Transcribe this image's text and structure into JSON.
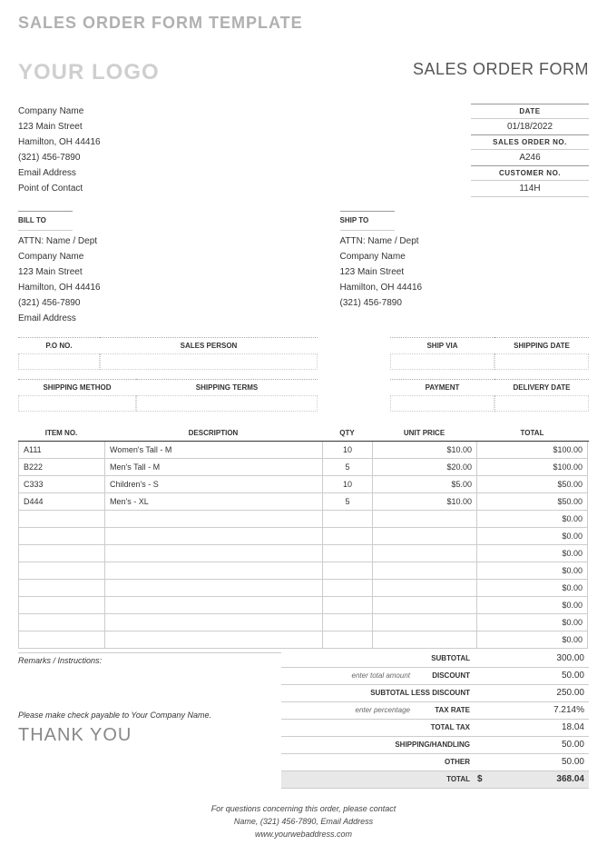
{
  "page_header": "SALES ORDER FORM TEMPLATE",
  "logo_text": "YOUR LOGO",
  "form_title": "SALES ORDER FORM",
  "company": {
    "name": "Company Name",
    "street": "123 Main Street",
    "city": "Hamilton, OH 44416",
    "phone": "(321) 456-7890",
    "email": "Email Address",
    "contact": "Point of Contact"
  },
  "meta": {
    "date_label": "DATE",
    "date_value": "01/18/2022",
    "order_label": "SALES ORDER NO.",
    "order_value": "A246",
    "customer_label": "CUSTOMER NO.",
    "customer_value": "114H"
  },
  "billto": {
    "header": "BILL TO",
    "attn": "ATTN: Name / Dept",
    "company": "Company Name",
    "street": "123 Main Street",
    "city": "Hamilton, OH 44416",
    "phone": "(321) 456-7890",
    "email": "Email Address"
  },
  "shipto": {
    "header": "SHIP TO",
    "attn": "ATTN: Name / Dept",
    "company": "Company Name",
    "street": "123 Main Street",
    "city": "Hamilton, OH 44416",
    "phone": "(321) 456-7890"
  },
  "gridlabels": {
    "po": "P.O NO.",
    "salesperson": "SALES PERSON",
    "shipvia": "SHIP VIA",
    "shipdate": "SHIPPING DATE",
    "shipmethod": "SHIPPING METHOD",
    "shipterms": "SHIPPING TERMS",
    "payment": "PAYMENT",
    "delivery": "DELIVERY DATE"
  },
  "items_header": {
    "no": "ITEM NO.",
    "desc": "DESCRIPTION",
    "qty": "QTY",
    "price": "UNIT PRICE",
    "total": "TOTAL"
  },
  "items": [
    {
      "no": "A111",
      "desc": "Women's Tall - M",
      "qty": "10",
      "price": "$10.00",
      "total": "$100.00"
    },
    {
      "no": "B222",
      "desc": "Men's Tall - M",
      "qty": "5",
      "price": "$20.00",
      "total": "$100.00"
    },
    {
      "no": "C333",
      "desc": "Children's - S",
      "qty": "10",
      "price": "$5.00",
      "total": "$50.00"
    },
    {
      "no": "D444",
      "desc": "Men's - XL",
      "qty": "5",
      "price": "$10.00",
      "total": "$50.00"
    },
    {
      "no": "",
      "desc": "",
      "qty": "",
      "price": "",
      "total": "$0.00"
    },
    {
      "no": "",
      "desc": "",
      "qty": "",
      "price": "",
      "total": "$0.00"
    },
    {
      "no": "",
      "desc": "",
      "qty": "",
      "price": "",
      "total": "$0.00"
    },
    {
      "no": "",
      "desc": "",
      "qty": "",
      "price": "",
      "total": "$0.00"
    },
    {
      "no": "",
      "desc": "",
      "qty": "",
      "price": "",
      "total": "$0.00"
    },
    {
      "no": "",
      "desc": "",
      "qty": "",
      "price": "",
      "total": "$0.00"
    },
    {
      "no": "",
      "desc": "",
      "qty": "",
      "price": "",
      "total": "$0.00"
    },
    {
      "no": "",
      "desc": "",
      "qty": "",
      "price": "",
      "total": "$0.00"
    }
  ],
  "remarks_label": "Remarks / Instructions:",
  "summary": {
    "subtotal_label": "SUBTOTAL",
    "subtotal": "300.00",
    "discount_hint": "enter total amount",
    "discount_label": "DISCOUNT",
    "discount": "50.00",
    "subless_label": "SUBTOTAL LESS DISCOUNT",
    "subless": "250.00",
    "taxrate_hint": "enter percentage",
    "taxrate_label": "TAX RATE",
    "taxrate": "7.214%",
    "totaltax_label": "TOTAL TAX",
    "totaltax": "18.04",
    "shipping_label": "SHIPPING/HANDLING",
    "shipping": "50.00",
    "other_label": "OTHER",
    "other": "50.00",
    "total_label": "TOTAL",
    "total_dollar": "$",
    "total": "368.04"
  },
  "payable": "Please make check payable to Your Company Name.",
  "thanks": "THANK YOU",
  "footer": {
    "line1": "For questions concerning this order, please contact",
    "line2": "Name, (321) 456-7890, Email Address",
    "line3": "www.yourwebaddress.com"
  },
  "styling": {
    "header_color": "#b0b0b0",
    "logo_color": "#cfcfcf",
    "border_color": "#cccccc",
    "total_row_bg": "#e8e8e8",
    "body_font_size": 10,
    "header_font_size": 18,
    "logo_font_size": 24
  }
}
